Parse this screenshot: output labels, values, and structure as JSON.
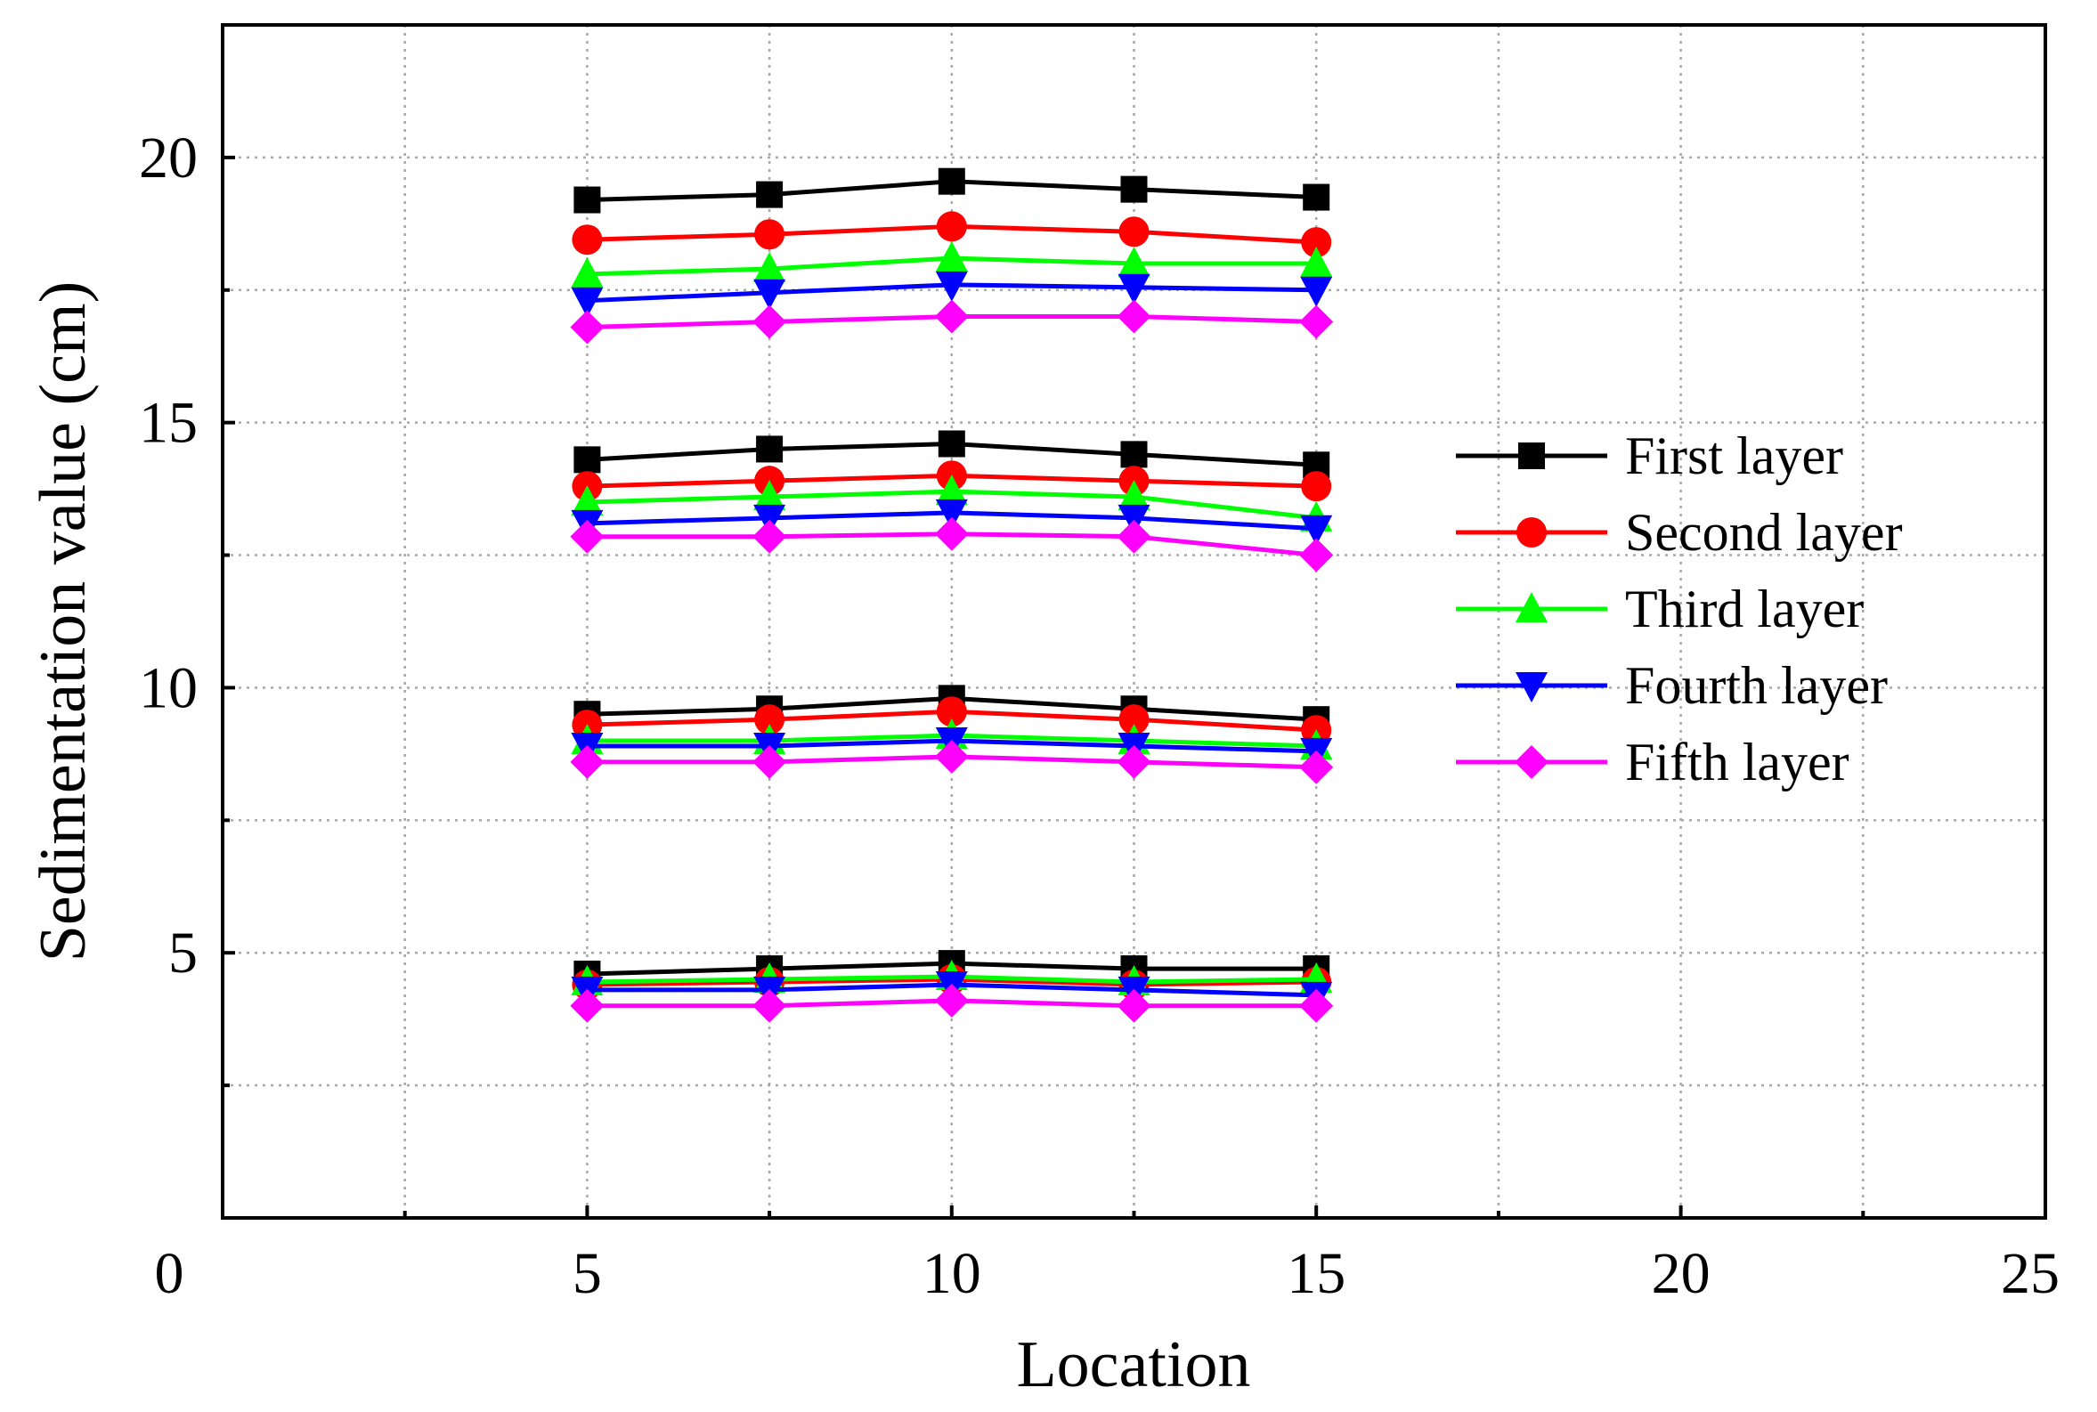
{
  "chart_data": {
    "type": "line",
    "title": "",
    "xlabel": "Location",
    "ylabel": "Sedimentation value (cm)",
    "xlim": [
      0,
      25
    ],
    "ylim": [
      0,
      22.5
    ],
    "x_ticks": [
      0,
      5,
      10,
      15,
      20,
      25
    ],
    "x_tick_labels": [
      "0",
      "5",
      "10",
      "15",
      "20",
      "25"
    ],
    "y_ticks": [
      5,
      10,
      15,
      20
    ],
    "y_tick_labels": [
      "5",
      "10",
      "15",
      "20"
    ],
    "x_minor_grid": [
      2.5,
      7.5,
      12.5,
      17.5,
      22.5
    ],
    "y_minor_grid": [
      2.5,
      7.5,
      12.5,
      17.5
    ],
    "grid": true,
    "legend_position": "right",
    "x": [
      5,
      7.5,
      10,
      12.5,
      15
    ],
    "series": [
      {
        "name": "First layer",
        "color": "#000000",
        "marker": "square",
        "groups": [
          [
            4.6,
            4.7,
            4.8,
            4.7,
            4.7
          ],
          [
            9.5,
            9.6,
            9.8,
            9.6,
            9.4
          ],
          [
            14.3,
            14.5,
            14.6,
            14.4,
            14.2
          ],
          [
            19.2,
            19.3,
            19.55,
            19.4,
            19.25
          ]
        ]
      },
      {
        "name": "Second layer",
        "color": "#ff0000",
        "marker": "circle",
        "groups": [
          [
            4.4,
            4.45,
            4.5,
            4.4,
            4.45
          ],
          [
            9.3,
            9.4,
            9.55,
            9.4,
            9.2
          ],
          [
            13.8,
            13.9,
            14.0,
            13.9,
            13.8
          ],
          [
            18.45,
            18.55,
            18.7,
            18.6,
            18.4
          ]
        ]
      },
      {
        "name": "Third layer",
        "color": "#00ff00",
        "marker": "triangle-up",
        "groups": [
          [
            4.45,
            4.5,
            4.55,
            4.45,
            4.5
          ],
          [
            9.0,
            9.0,
            9.1,
            9.0,
            8.9
          ],
          [
            13.5,
            13.6,
            13.7,
            13.6,
            13.2
          ],
          [
            17.8,
            17.9,
            18.1,
            18.0,
            18.0
          ]
        ]
      },
      {
        "name": "Fourth layer",
        "color": "#0000ff",
        "marker": "triangle-down",
        "groups": [
          [
            4.3,
            4.3,
            4.4,
            4.3,
            4.2
          ],
          [
            8.9,
            8.9,
            9.0,
            8.9,
            8.8
          ],
          [
            13.1,
            13.2,
            13.3,
            13.2,
            13.0
          ],
          [
            17.3,
            17.45,
            17.6,
            17.55,
            17.5
          ]
        ]
      },
      {
        "name": "Fifth layer",
        "color": "#ff00ff",
        "marker": "diamond",
        "groups": [
          [
            4.0,
            4.0,
            4.1,
            4.0,
            4.0
          ],
          [
            8.6,
            8.6,
            8.7,
            8.6,
            8.5
          ],
          [
            12.85,
            12.85,
            12.9,
            12.85,
            12.5
          ],
          [
            16.8,
            16.9,
            17.0,
            17.0,
            16.9
          ]
        ]
      }
    ]
  }
}
